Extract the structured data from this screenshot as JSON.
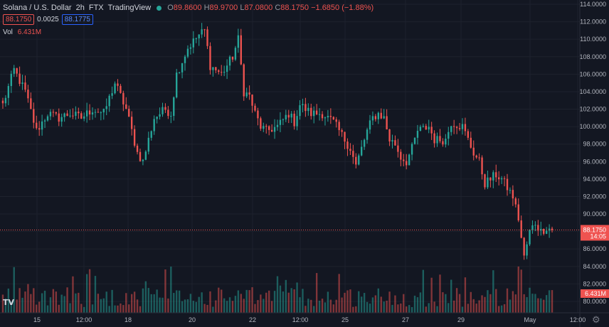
{
  "legend": {
    "symbol": "Solana / U.S. Dollar",
    "interval": "2h",
    "exchange": "FTX",
    "source": "TradingView",
    "open_label": "O",
    "open": "89.8600",
    "high_label": "H",
    "high": "89.9700",
    "low_label": "L",
    "low": "87.0800",
    "close_label": "C",
    "close": "88.1750",
    "change": "−1.6850 (−1.88%)",
    "sell_price": "88.1750",
    "spread": "0.0025",
    "buy_price": "88.1775",
    "vol_label": "Vol",
    "vol_value": "6.431M"
  },
  "axis": {
    "price_labels": [
      "114.0000",
      "112.0000",
      "110.0000",
      "108.0000",
      "106.0000",
      "104.0000",
      "102.0000",
      "100.0000",
      "98.0000",
      "96.0000",
      "94.0000",
      "92.0000",
      "90.0000",
      "88.0000",
      "86.0000",
      "84.0000",
      "82.0000",
      "80.0000"
    ],
    "time_labels": [
      "15",
      "12:00",
      "18",
      "20",
      "22",
      "12:00",
      "25",
      "27",
      "29",
      "May",
      "12:00"
    ],
    "current_price_tag": "88.1750",
    "countdown_tag": "14:05",
    "volume_tag": "6.431M"
  },
  "colors": {
    "up": "#26a69a",
    "down": "#ef5350",
    "background": "#131722",
    "grid": "#1e222d"
  },
  "icons": {
    "logo": "tradingview-logo-icon",
    "settings": "gear-icon"
  },
  "logo_text": "TV",
  "chart_data": {
    "type": "candlestick",
    "price_range": [
      79,
      114.5
    ],
    "current_price": 88.175,
    "anchors": [
      [
        0,
        102.5
      ],
      [
        4,
        106.5
      ],
      [
        8,
        104
      ],
      [
        12,
        99.5
      ],
      [
        16,
        101.5
      ],
      [
        20,
        101
      ],
      [
        24,
        101.5
      ],
      [
        28,
        101
      ],
      [
        32,
        102
      ],
      [
        36,
        101.5
      ],
      [
        40,
        105
      ],
      [
        44,
        102
      ],
      [
        48,
        97
      ],
      [
        50,
        96
      ],
      [
        54,
        101
      ],
      [
        58,
        102
      ],
      [
        60,
        101.5
      ],
      [
        62,
        106
      ],
      [
        66,
        109
      ],
      [
        70,
        110.5
      ],
      [
        72,
        111
      ],
      [
        74,
        107
      ],
      [
        78,
        106
      ],
      [
        82,
        108
      ],
      [
        84,
        110
      ],
      [
        86,
        104
      ],
      [
        88,
        103.5
      ],
      [
        90,
        101.5
      ],
      [
        92,
        100
      ],
      [
        94,
        99.5
      ],
      [
        98,
        100
      ],
      [
        102,
        101.5
      ],
      [
        104,
        100.5
      ],
      [
        106,
        102.5
      ],
      [
        110,
        101.5
      ],
      [
        114,
        101.5
      ],
      [
        118,
        100.5
      ],
      [
        122,
        98.5
      ],
      [
        124,
        97.5
      ],
      [
        126,
        95.5
      ],
      [
        130,
        99.5
      ],
      [
        132,
        101
      ],
      [
        134,
        101.5
      ],
      [
        136,
        101
      ],
      [
        138,
        98.5
      ],
      [
        140,
        98
      ],
      [
        142,
        96.5
      ],
      [
        144,
        96
      ],
      [
        146,
        97.5
      ],
      [
        148,
        99.5
      ],
      [
        152,
        100
      ],
      [
        154,
        98.5
      ],
      [
        158,
        98.5
      ],
      [
        160,
        100.5
      ],
      [
        164,
        100
      ],
      [
        166,
        98.5
      ],
      [
        168,
        97
      ],
      [
        170,
        96
      ],
      [
        172,
        93.5
      ],
      [
        174,
        94
      ],
      [
        176,
        94.5
      ],
      [
        178,
        94
      ],
      [
        182,
        92
      ],
      [
        184,
        89.5
      ],
      [
        186,
        85
      ],
      [
        188,
        88
      ],
      [
        190,
        89
      ],
      [
        192,
        88
      ],
      [
        194,
        88.5
      ],
      [
        196,
        88.175
      ]
    ],
    "volume_hint": "relative volume bars, low baseline with spikes"
  }
}
